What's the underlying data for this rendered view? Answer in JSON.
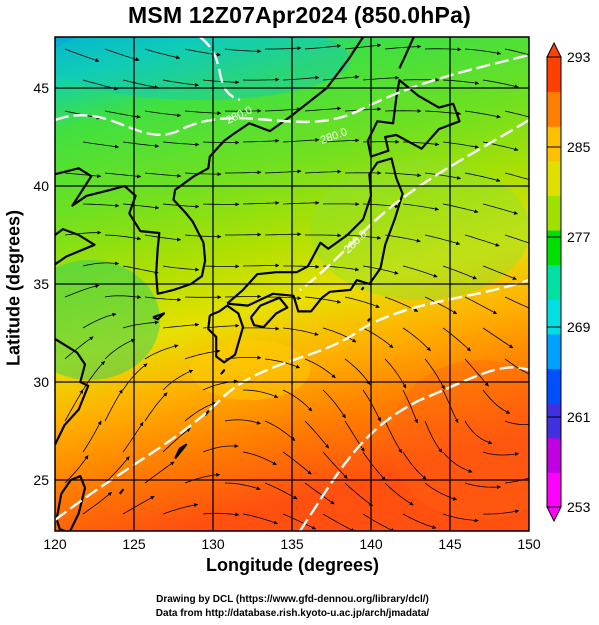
{
  "title": "MSM 12Z07Apr2024 (850.0hPa)",
  "axes": {
    "xlabel": "Longitude (degrees)",
    "ylabel": "Latitude  (degrees)",
    "x_range": [
      120,
      150
    ],
    "y_range": [
      22.4,
      47.6
    ],
    "x_ticks": [
      120,
      125,
      130,
      135,
      140,
      145,
      150
    ],
    "y_ticks": [
      25,
      30,
      35,
      40,
      45
    ],
    "x_tick_labels": [
      "120",
      "125",
      "130",
      "135",
      "140",
      "145",
      "150"
    ],
    "y_tick_labels": [
      "25",
      "30",
      "35",
      "40",
      "45"
    ]
  },
  "colorbar": {
    "range": [
      253,
      293
    ],
    "tick_values": [
      293,
      285,
      277,
      269,
      261,
      253
    ],
    "tick_labels": [
      "293",
      "285",
      "277",
      "269",
      "261",
      "253"
    ],
    "colors": [
      "#ff00ff",
      "#c000e0",
      "#4030e0",
      "#0050ff",
      "#00a0ff",
      "#00e0e0",
      "#00e0a0",
      "#00e000",
      "#a0e000",
      "#e0e000",
      "#ffc000",
      "#ff8000",
      "#ff4000"
    ]
  },
  "contour_labels": [
    "280.0",
    "280.0",
    "280.0"
  ],
  "credits": {
    "line1": "Drawing by DCL (https://www.gfd-dennou.org/library/dcl/)",
    "line2": "Data from http://database.rish.kyoto-u.ac.jp/arch/jmadata/"
  }
}
